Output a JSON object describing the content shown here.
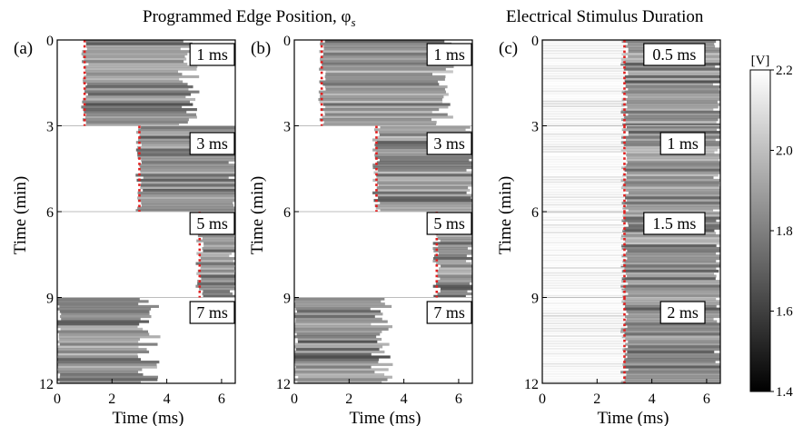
{
  "headers": {
    "left": "Programmed Edge Position, φ",
    "left_subscript": "s",
    "right": "Electrical Stimulus Duration"
  },
  "chart_data": [
    {
      "type": "heatmap",
      "panel_label": "(a)",
      "xlabel": "Time (ms)",
      "ylabel": "Time (min)",
      "xlim": [
        0,
        6.5
      ],
      "ylim": [
        12,
        0
      ],
      "xticks": [
        0,
        2,
        4,
        6
      ],
      "yticks": [
        0,
        3,
        6,
        9,
        12
      ],
      "segments": [
        {
          "label": "1 ms",
          "t_start": 0,
          "t_end": 3,
          "edge_ms": 1.0,
          "dark_from": 1.0,
          "dark_to": 4.6
        },
        {
          "label": "3 ms",
          "t_start": 3,
          "t_end": 6,
          "edge_ms": 3.0,
          "dark_from": 3.0,
          "dark_to": 6.5
        },
        {
          "label": "5 ms",
          "t_start": 6,
          "t_end": 9,
          "edge_ms": 5.2,
          "dark_from": 5.2,
          "dark_to": 6.5
        },
        {
          "label": "7 ms",
          "t_start": 9,
          "t_end": 12,
          "edge_ms": null,
          "dark_from": 0.0,
          "dark_to": 3.2
        }
      ]
    },
    {
      "type": "heatmap",
      "panel_label": "(b)",
      "xlabel": "Time (ms)",
      "ylabel": "Time (min)",
      "xlim": [
        0,
        6.5
      ],
      "ylim": [
        12,
        0
      ],
      "xticks": [
        0,
        2,
        4,
        6
      ],
      "yticks": [
        0,
        3,
        6,
        9,
        12
      ],
      "segments": [
        {
          "label": "1 ms",
          "t_start": 0,
          "t_end": 3,
          "edge_ms": 1.0,
          "dark_from": 1.0,
          "dark_to": 5.2
        },
        {
          "label": "3 ms",
          "t_start": 3,
          "t_end": 6,
          "edge_ms": 3.0,
          "dark_from": 3.0,
          "dark_to": 6.5
        },
        {
          "label": "5 ms",
          "t_start": 6,
          "t_end": 9,
          "edge_ms": 5.2,
          "dark_from": 5.2,
          "dark_to": 6.5
        },
        {
          "label": "7 ms",
          "t_start": 9,
          "t_end": 12,
          "edge_ms": null,
          "dark_from": 0.0,
          "dark_to": 3.0
        }
      ]
    },
    {
      "type": "heatmap",
      "panel_label": "(c)",
      "xlabel": "Time (ms)",
      "ylabel": "Time (min)",
      "xlim": [
        0,
        6.5
      ],
      "ylim": [
        12,
        0
      ],
      "xticks": [
        0,
        2,
        4,
        6
      ],
      "yticks": [
        0,
        3,
        6,
        9,
        12
      ],
      "segments": [
        {
          "label": "0.5 ms",
          "t_start": 0,
          "t_end": 3,
          "edge_ms": 3.0,
          "dark_from": 3.0,
          "dark_to": 6.5
        },
        {
          "label": "1 ms",
          "t_start": 3,
          "t_end": 6,
          "edge_ms": 3.0,
          "dark_from": 3.0,
          "dark_to": 6.5
        },
        {
          "label": "1.5 ms",
          "t_start": 6,
          "t_end": 9,
          "edge_ms": 3.0,
          "dark_from": 3.0,
          "dark_to": 6.5
        },
        {
          "label": "2 ms",
          "t_start": 9,
          "t_end": 12,
          "edge_ms": 3.0,
          "dark_from": 3.0,
          "dark_to": 6.5
        }
      ]
    }
  ],
  "colorbar": {
    "label": "[V]",
    "min": 1.4,
    "max": 2.2,
    "ticks": [
      "2.2",
      "2.0",
      "1.8",
      "1.6",
      "1.4"
    ],
    "colormap": "gray"
  },
  "colors": {
    "edge_marker": "#e02020",
    "dark": "#1e1e1e",
    "light": "#ffffff"
  }
}
